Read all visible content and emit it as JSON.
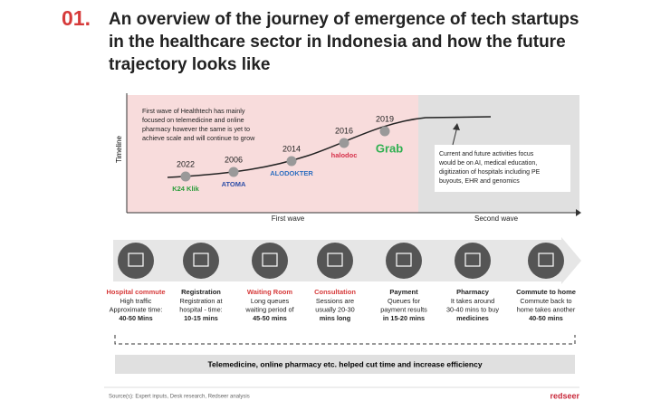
{
  "header": {
    "number": "01.",
    "title_lines": [
      "An overview of the journey of emergence of tech startups",
      "in the healthcare sector in Indonesia and how the future",
      "trajectory looks like"
    ]
  },
  "timeline": {
    "axis_label": "Timeline",
    "note_lines": [
      "First wave of Healthtech has mainly",
      "focused on telemedicine and online",
      "pharmacy however the same is yet to",
      "achieve scale and will continue to grow"
    ],
    "milestones": [
      {
        "year": "2022",
        "company": "K24 Klik",
        "color": "#2a9d3a"
      },
      {
        "year": "2006",
        "company": "ATOMA",
        "color": "#2f4fa8"
      },
      {
        "year": "2014",
        "company": "ALODOKTER",
        "color": "#2f6fc0"
      },
      {
        "year": "2016",
        "company": "halodoc",
        "color": "#d6314a"
      },
      {
        "year": "2019",
        "company": "Grab",
        "color": "#2fb050"
      }
    ],
    "future_lines": [
      "Current and future activities focus",
      "would be on AI, medical education,",
      "digitization of hospitals including PE",
      "buyouts, EHR and genomics"
    ],
    "waves": [
      "First wave",
      "Second wave"
    ]
  },
  "steps": [
    {
      "name": "Hospital commute",
      "lines": [
        "High traffic",
        "Approximate time:",
        "40-50 Mins"
      ]
    },
    {
      "name": "Registration",
      "lines": [
        "Registration at",
        "hospital - time:",
        "10-15 mins"
      ]
    },
    {
      "name": "Waiting Room",
      "lines": [
        "Long queues",
        "waiting period of",
        "45-50 mins"
      ]
    },
    {
      "name": "Consultation",
      "lines": [
        "Sessions are",
        "usually 20-30",
        "mins long"
      ]
    },
    {
      "name": "Payment",
      "lines": [
        "Queues for",
        "payment results",
        "in 15-20 mins"
      ]
    },
    {
      "name": "Pharmacy",
      "lines": [
        "It takes around",
        "30-40 mins to buy",
        "medicines"
      ]
    },
    {
      "name": "Commute to home",
      "lines": [
        "Commute back to",
        "home takes another",
        "40-50 mins"
      ]
    }
  ],
  "banner": "Telemedicine, online pharmacy etc. helped cut time and increase efficiency",
  "footer": {
    "source": "Source(s): Expert inputs, Desk research, Redseer analysis",
    "logo": "redseer"
  }
}
